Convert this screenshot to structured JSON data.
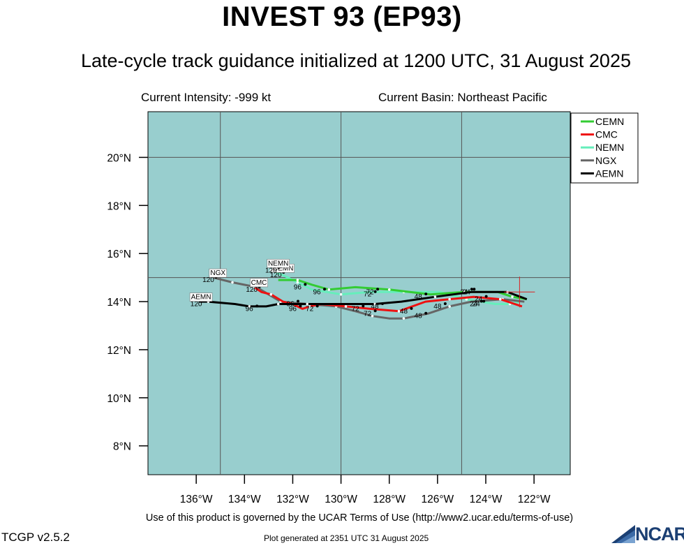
{
  "header": {
    "title": "INVEST 93 (EP93)",
    "subtitle": "Late-cycle track guidance initialized at 1200 UTC, 31 August 2025",
    "intensity": "Current Intensity: -999 kt",
    "basin": "Current Basin: Northeast Pacific"
  },
  "footer": {
    "terms": "Use of this product is governed by the UCAR Terms of Use (http://www2.ucar.edu/terms-of-use)",
    "version": "TCGP v2.5.2",
    "generated": "Plot generated at 2351 UTC   31 August 2025",
    "logo_text": "NCAR"
  },
  "chart_data": {
    "type": "line",
    "title": "INVEST 93 (EP93)",
    "xlim": [
      -138.0,
      -120.5
    ],
    "ylim": [
      6.8,
      21.9
    ],
    "x_ticks": [
      -136,
      -134,
      -132,
      -130,
      -128,
      -126,
      -124,
      -122
    ],
    "x_tick_labels": [
      "136°W",
      "134°W",
      "132°W",
      "130°W",
      "128°W",
      "126°W",
      "124°W",
      "122°W"
    ],
    "y_ticks": [
      8,
      10,
      12,
      14,
      16,
      18,
      20
    ],
    "y_tick_labels": [
      "8°N",
      "10°N",
      "12°N",
      "14°N",
      "16°N",
      "18°N",
      "20°N"
    ],
    "gridlines_lon": [
      -135,
      -130,
      -125
    ],
    "gridlines_lat": [
      15,
      20
    ],
    "grid": true,
    "legend_position": "top-right",
    "current_position": {
      "lon": -122.6,
      "lat": 14.4
    },
    "background_color": "#98cece",
    "series": [
      {
        "name": "CEMN",
        "color": "#33cc33",
        "points": [
          [
            -122.3,
            14.1
          ],
          [
            -122.9,
            14.2
          ],
          [
            -123.5,
            14.4
          ],
          [
            -124.9,
            14.4
          ],
          [
            -126.3,
            14.3
          ],
          [
            -128.0,
            14.5
          ],
          [
            -129.4,
            14.6
          ],
          [
            -130.5,
            14.5
          ],
          [
            -131.2,
            14.7
          ],
          [
            -131.8,
            14.9
          ],
          [
            -132.6,
            14.9
          ]
        ],
        "labels": [
          {
            "text": "24",
            "lon": -124.9,
            "lat": 14.4
          },
          {
            "text": "48",
            "lon": -126.8,
            "lat": 14.2
          },
          {
            "text": "72",
            "lon": -128.8,
            "lat": 14.4
          },
          {
            "text": "96",
            "lon": -131.0,
            "lat": 14.4
          },
          {
            "text": "120",
            "lon": -132.7,
            "lat": 15.1
          }
        ],
        "tag": {
          "text": "CEMN",
          "lon": -132.4,
          "lat": 15.3
        }
      },
      {
        "name": "CMC",
        "color": "#ee1111",
        "points": [
          [
            -122.5,
            13.8
          ],
          [
            -123.4,
            14.1
          ],
          [
            -124.5,
            14.2
          ],
          [
            -125.5,
            14.1
          ],
          [
            -126.5,
            14.0
          ],
          [
            -127.6,
            13.6
          ],
          [
            -128.8,
            13.7
          ],
          [
            -129.8,
            13.8
          ],
          [
            -130.8,
            13.9
          ],
          [
            -131.3,
            13.8
          ],
          [
            -131.6,
            13.7
          ],
          [
            -132.0,
            13.9
          ],
          [
            -132.4,
            14.0
          ],
          [
            -132.9,
            14.3
          ],
          [
            -133.3,
            14.4
          ],
          [
            -133.6,
            14.6
          ]
        ],
        "labels": [
          {
            "text": "24",
            "lon": -124.3,
            "lat": 14.1
          },
          {
            "text": "48",
            "lon": -127.4,
            "lat": 13.6
          },
          {
            "text": "72",
            "lon": -131.3,
            "lat": 13.7
          },
          {
            "text": "96",
            "lon": -132.0,
            "lat": 13.7
          },
          {
            "text": "120",
            "lon": -133.7,
            "lat": 14.5
          }
        ],
        "tag": {
          "text": "CMC",
          "lon": -133.4,
          "lat": 14.7
        }
      },
      {
        "name": "NEMN",
        "color": "#66eebb",
        "points": [
          [
            -122.6,
            14.0
          ],
          [
            -123.0,
            13.9
          ],
          [
            -123.6,
            13.9
          ],
          [
            -124.8,
            14.1
          ],
          [
            -125.9,
            14.4
          ],
          [
            -127.4,
            14.4
          ],
          [
            -128.8,
            14.4
          ],
          [
            -130.0,
            14.3
          ],
          [
            -131.2,
            14.5
          ],
          [
            -131.8,
            14.8
          ],
          [
            -132.4,
            15.1
          ],
          [
            -132.9,
            15.3
          ]
        ],
        "labels": [
          {
            "text": "24",
            "lon": -124.5,
            "lat": 13.9
          },
          {
            "text": "48",
            "lon": -126.0,
            "lat": 13.8
          },
          {
            "text": "72",
            "lon": -128.9,
            "lat": 14.3
          },
          {
            "text": "96",
            "lon": -131.8,
            "lat": 14.6
          },
          {
            "text": "120",
            "lon": -132.9,
            "lat": 15.3
          }
        ],
        "tag": {
          "text": "NEMN",
          "lon": -132.6,
          "lat": 15.5
        }
      },
      {
        "name": "NGX",
        "color": "#666666",
        "points": [
          [
            -122.4,
            14.0
          ],
          [
            -123.3,
            14.1
          ],
          [
            -124.6,
            14.0
          ],
          [
            -125.5,
            13.8
          ],
          [
            -126.4,
            13.5
          ],
          [
            -127.4,
            13.3
          ],
          [
            -128.0,
            13.3
          ],
          [
            -128.7,
            13.4
          ],
          [
            -129.4,
            13.6
          ],
          [
            -130.2,
            13.8
          ],
          [
            -131.4,
            13.9
          ],
          [
            -132.5,
            14.0
          ],
          [
            -133.5,
            14.6
          ],
          [
            -134.5,
            14.8
          ],
          [
            -135.3,
            15.0
          ]
        ],
        "labels": [
          {
            "text": "24",
            "lon": -124.4,
            "lat": 13.9
          },
          {
            "text": "48",
            "lon": -126.8,
            "lat": 13.4
          },
          {
            "text": "72",
            "lon": -128.9,
            "lat": 13.5
          },
          {
            "text": "96",
            "lon": -132.1,
            "lat": 13.9
          },
          {
            "text": "120",
            "lon": -135.5,
            "lat": 14.9
          }
        ],
        "tag": {
          "text": "NGX",
          "lon": -135.1,
          "lat": 15.1
        }
      },
      {
        "name": "AEMN",
        "color": "#000000",
        "points": [
          [
            -122.3,
            14.1
          ],
          [
            -123.1,
            14.4
          ],
          [
            -124.6,
            14.4
          ],
          [
            -126.1,
            14.2
          ],
          [
            -127.5,
            14.0
          ],
          [
            -128.6,
            13.9
          ],
          [
            -130.0,
            13.9
          ],
          [
            -131.4,
            13.9
          ],
          [
            -132.3,
            13.9
          ],
          [
            -132.6,
            13.9
          ],
          [
            -133.1,
            13.8
          ],
          [
            -133.8,
            13.8
          ],
          [
            -134.4,
            13.9
          ],
          [
            -135.5,
            14.0
          ],
          [
            -135.9,
            14.0
          ]
        ],
        "labels": [
          {
            "text": "24",
            "lon": -124.8,
            "lat": 14.4
          },
          {
            "text": "48",
            "lon": -128.6,
            "lat": 13.8
          },
          {
            "text": "72",
            "lon": -129.4,
            "lat": 13.7
          },
          {
            "text": "96",
            "lon": -133.8,
            "lat": 13.7
          },
          {
            "text": "120",
            "lon": -136.0,
            "lat": 13.9
          }
        ],
        "tag": {
          "text": "AEMN",
          "lon": -135.8,
          "lat": 14.1
        }
      }
    ]
  }
}
